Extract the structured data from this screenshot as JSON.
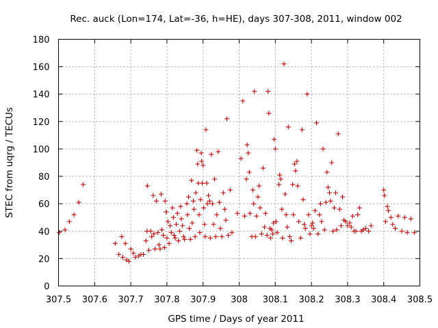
{
  "chart_data": {
    "type": "scatter",
    "title": "Rec. auck (Lon=174, Lat=-36, h=HE), days 307-308, 2011, window 002",
    "xlabel": "GPS time / Days of year 2011",
    "ylabel": "STEC from uqrg / TECUs",
    "xlim": [
      307.5,
      308.5
    ],
    "ylim": [
      0,
      180
    ],
    "xticks": [
      "307.5",
      "307.6",
      "307.7",
      "307.8",
      "307.9",
      "308",
      "308.1",
      "308.2",
      "308.3",
      "308.4",
      "308.5"
    ],
    "yticks": [
      "0",
      "20",
      "40",
      "60",
      "80",
      "100",
      "120",
      "140",
      "160",
      "180"
    ],
    "grid": true,
    "marker": "+",
    "color": "#cc0000",
    "series": [
      {
        "name": "",
        "points": [
          [
            307.502,
            39
          ],
          [
            307.518,
            41
          ],
          [
            307.53,
            47
          ],
          [
            307.543,
            52
          ],
          [
            307.556,
            61
          ],
          [
            307.568,
            74
          ],
          [
            307.657,
            31
          ],
          [
            307.667,
            23
          ],
          [
            307.675,
            36
          ],
          [
            307.678,
            21
          ],
          [
            307.685,
            31
          ],
          [
            307.688,
            19
          ],
          [
            307.695,
            18
          ],
          [
            307.7,
            27
          ],
          [
            307.707,
            24
          ],
          [
            307.713,
            21
          ],
          [
            307.722,
            22
          ],
          [
            307.728,
            23
          ],
          [
            307.735,
            23
          ],
          [
            307.742,
            33
          ],
          [
            307.745,
            40
          ],
          [
            307.746,
            73
          ],
          [
            307.75,
            26
          ],
          [
            307.755,
            40
          ],
          [
            307.758,
            36
          ],
          [
            307.762,
            66
          ],
          [
            307.764,
            38
          ],
          [
            307.767,
            27
          ],
          [
            307.771,
            62
          ],
          [
            307.775,
            39
          ],
          [
            307.778,
            30
          ],
          [
            307.781,
            27
          ],
          [
            307.784,
            67
          ],
          [
            307.786,
            41
          ],
          [
            307.79,
            37
          ],
          [
            307.793,
            28
          ],
          [
            307.795,
            62
          ],
          [
            307.798,
            54
          ],
          [
            307.8,
            35
          ],
          [
            307.803,
            47
          ],
          [
            307.806,
            31
          ],
          [
            307.809,
            44
          ],
          [
            307.812,
            39
          ],
          [
            307.815,
            57
          ],
          [
            307.818,
            50
          ],
          [
            307.82,
            37
          ],
          [
            307.823,
            35
          ],
          [
            307.826,
            45
          ],
          [
            307.829,
            53
          ],
          [
            307.832,
            33
          ],
          [
            307.835,
            40
          ],
          [
            307.838,
            58
          ],
          [
            307.84,
            49
          ],
          [
            307.843,
            44
          ],
          [
            307.846,
            36
          ],
          [
            307.849,
            34
          ],
          [
            307.855,
            60
          ],
          [
            307.857,
            52
          ],
          [
            307.86,
            65
          ],
          [
            307.862,
            42
          ],
          [
            307.865,
            34
          ],
          [
            307.868,
            77
          ],
          [
            307.87,
            46
          ],
          [
            307.873,
            62
          ],
          [
            307.875,
            56
          ],
          [
            307.878,
            36
          ],
          [
            307.88,
            68
          ],
          [
            307.883,
            99
          ],
          [
            307.885,
            89
          ],
          [
            307.887,
            75
          ],
          [
            307.889,
            52
          ],
          [
            307.891,
            39
          ],
          [
            307.893,
            63
          ],
          [
            307.895,
            97
          ],
          [
            307.896,
            91
          ],
          [
            307.898,
            75
          ],
          [
            307.9,
            88
          ],
          [
            307.902,
            57
          ],
          [
            307.904,
            45
          ],
          [
            307.906,
            36
          ],
          [
            307.908,
            114
          ],
          [
            307.91,
            75
          ],
          [
            307.912,
            60
          ],
          [
            307.915,
            66
          ],
          [
            307.918,
            62
          ],
          [
            307.92,
            35
          ],
          [
            307.923,
            96
          ],
          [
            307.926,
            60
          ],
          [
            307.929,
            45
          ],
          [
            307.932,
            78
          ],
          [
            307.935,
            36
          ],
          [
            307.938,
            52
          ],
          [
            307.942,
            98
          ],
          [
            307.945,
            61
          ],
          [
            307.948,
            42
          ],
          [
            307.952,
            36
          ],
          [
            307.956,
            68
          ],
          [
            307.96,
            56
          ],
          [
            307.963,
            48
          ],
          [
            307.966,
            122
          ],
          [
            307.97,
            37
          ],
          [
            307.975,
            70
          ],
          [
            307.98,
            39
          ],
          [
            307.995,
            53
          ],
          [
            308.005,
            93
          ],
          [
            308.01,
            135
          ],
          [
            308.015,
            51
          ],
          [
            308.02,
            78
          ],
          [
            308.022,
            103
          ],
          [
            308.025,
            97
          ],
          [
            308.028,
            83
          ],
          [
            308.03,
            53
          ],
          [
            308.035,
            36
          ],
          [
            308.038,
            70
          ],
          [
            308.04,
            60
          ],
          [
            308.042,
            142
          ],
          [
            308.045,
            36
          ],
          [
            308.048,
            51
          ],
          [
            308.052,
            65
          ],
          [
            308.055,
            73
          ],
          [
            308.058,
            57
          ],
          [
            308.062,
            38
          ],
          [
            308.066,
            86
          ],
          [
            308.07,
            43
          ],
          [
            308.073,
            53
          ],
          [
            308.077,
            37
          ],
          [
            308.08,
            142
          ],
          [
            308.082,
            126
          ],
          [
            308.085,
            42
          ],
          [
            308.087,
            35
          ],
          [
            308.09,
            41
          ],
          [
            308.093,
            38
          ],
          [
            308.095,
            46
          ],
          [
            308.097,
            107
          ],
          [
            308.1,
            100
          ],
          [
            308.102,
            47
          ],
          [
            308.105,
            39
          ],
          [
            308.11,
            74
          ],
          [
            308.112,
            81
          ],
          [
            308.115,
            78
          ],
          [
            308.118,
            56
          ],
          [
            308.12,
            35
          ],
          [
            308.124,
            162
          ],
          [
            308.127,
            67
          ],
          [
            308.13,
            52
          ],
          [
            308.133,
            43
          ],
          [
            308.136,
            116
          ],
          [
            308.14,
            36
          ],
          [
            308.144,
            33
          ],
          [
            308.148,
            74
          ],
          [
            308.15,
            52
          ],
          [
            308.153,
            89
          ],
          [
            308.156,
            84
          ],
          [
            308.16,
            91
          ],
          [
            308.162,
            73
          ],
          [
            308.165,
            47
          ],
          [
            308.17,
            35
          ],
          [
            308.174,
            114
          ],
          [
            308.177,
            63
          ],
          [
            308.18,
            45
          ],
          [
            308.183,
            42
          ],
          [
            308.188,
            140
          ],
          [
            308.192,
            52
          ],
          [
            308.196,
            38
          ],
          [
            308.2,
            44
          ],
          [
            308.203,
            46
          ],
          [
            308.206,
            42
          ],
          [
            308.21,
            55
          ],
          [
            308.214,
            119
          ],
          [
            308.218,
            38
          ],
          [
            308.222,
            52
          ],
          [
            308.225,
            60
          ],
          [
            308.228,
            47
          ],
          [
            308.232,
            100
          ],
          [
            308.236,
            41
          ],
          [
            308.24,
            61
          ],
          [
            308.243,
            83
          ],
          [
            308.246,
            72
          ],
          [
            308.25,
            68
          ],
          [
            308.253,
            62
          ],
          [
            308.256,
            90
          ],
          [
            308.26,
            40
          ],
          [
            308.263,
            57
          ],
          [
            308.267,
            68
          ],
          [
            308.27,
            41
          ],
          [
            308.274,
            111
          ],
          [
            308.278,
            56
          ],
          [
            308.282,
            44
          ],
          [
            308.286,
            65
          ],
          [
            308.29,
            48
          ],
          [
            308.295,
            47
          ],
          [
            308.3,
            44
          ],
          [
            308.306,
            46
          ],
          [
            308.31,
            43
          ],
          [
            308.314,
            51
          ],
          [
            308.318,
            40
          ],
          [
            308.323,
            40
          ],
          [
            308.328,
            52
          ],
          [
            308.333,
            57
          ],
          [
            308.338,
            40
          ],
          [
            308.343,
            41
          ],
          [
            308.35,
            42
          ],
          [
            308.358,
            40
          ],
          [
            308.365,
            44
          ],
          [
            308.4,
            70
          ],
          [
            308.402,
            66
          ],
          [
            308.405,
            47
          ],
          [
            308.41,
            58
          ],
          [
            308.413,
            55
          ],
          [
            308.42,
            50
          ],
          [
            308.425,
            45
          ],
          [
            308.432,
            42
          ],
          [
            308.44,
            51
          ],
          [
            308.45,
            40
          ],
          [
            308.458,
            50
          ],
          [
            308.465,
            39
          ],
          [
            308.475,
            49
          ],
          [
            308.485,
            39
          ]
        ]
      }
    ]
  }
}
